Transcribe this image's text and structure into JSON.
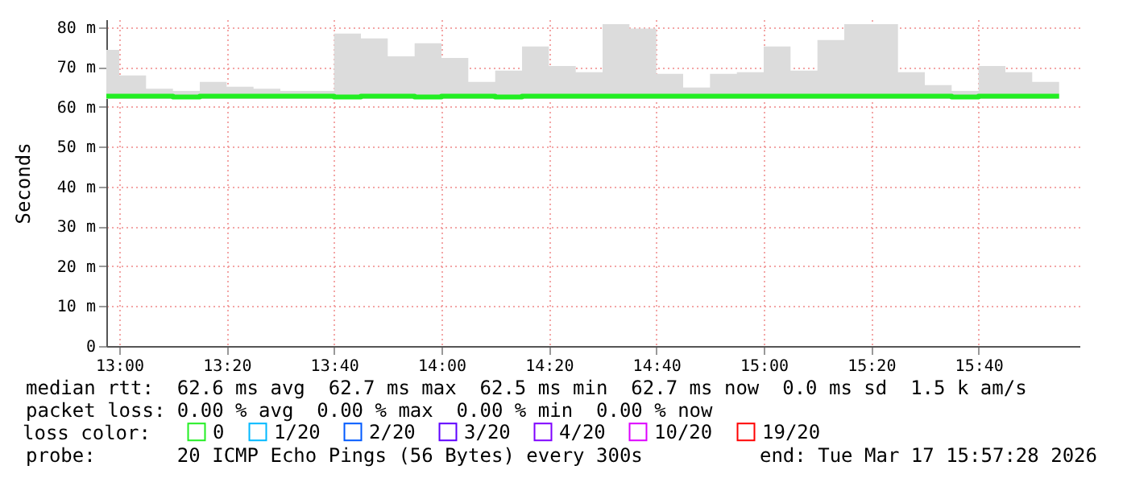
{
  "chart_data": {
    "type": "step",
    "ylabel": "Seconds",
    "legend_title": "loss color:",
    "x": [
      12.96,
      13,
      13.0833,
      13.1667,
      13.25,
      13.3333,
      13.4167,
      13.5,
      13.5833,
      13.6667,
      13.75,
      13.8333,
      13.9167,
      14,
      14.0833,
      14.1667,
      14.25,
      14.3333,
      14.4167,
      14.5,
      14.5833,
      14.6667,
      14.75,
      14.8333,
      14.9167,
      15,
      15.0833,
      15.1667,
      15.25,
      15.3333,
      15.4167,
      15.5,
      15.5833,
      15.6667,
      15.75,
      15.8333,
      15.9167
    ],
    "series": [
      {
        "name": "0",
        "color": "#22ee22",
        "values": [
          62.7,
          62.7,
          62.7,
          62.5,
          62.7,
          62.7,
          62.7,
          62.7,
          62.7,
          62.5,
          62.7,
          62.7,
          62.5,
          62.7,
          62.7,
          62.5,
          62.7,
          62.7,
          62.7,
          62.7,
          62.7,
          62.7,
          62.7,
          62.7,
          62.7,
          62.7,
          62.7,
          62.7,
          62.7,
          62.7,
          62.7,
          62.7,
          62.5,
          62.7,
          62.7,
          62.7,
          62.7
        ],
        "lower": [
          62,
          62,
          62,
          62,
          62,
          62,
          62,
          62,
          62,
          62,
          62,
          62,
          62,
          62,
          62,
          62,
          62,
          62,
          62,
          62,
          62,
          62,
          62,
          62,
          62,
          62,
          62,
          62,
          62,
          62,
          62,
          62,
          62,
          62,
          62,
          62,
          62
        ],
        "upper": [
          74.3,
          67.9,
          64.6,
          64,
          66.3,
          65.1,
          64.6,
          64,
          64,
          78.4,
          77.2,
          72.7,
          76,
          72.3,
          66.3,
          69.1,
          75.2,
          70.3,
          68.7,
          80.8,
          79.7,
          68.3,
          64.9,
          68.3,
          68.7,
          75.2,
          69.1,
          76.8,
          80.8,
          80.8,
          68.7,
          65.5,
          64,
          70.3,
          68.7,
          66.3,
          66.3
        ]
      },
      {
        "name": "1/20",
        "color": "#00b8ff",
        "values": [
          null,
          null,
          null,
          null,
          null,
          null,
          null,
          null,
          null,
          null,
          null,
          null,
          null,
          null,
          null,
          null,
          null,
          null,
          null,
          null,
          null,
          null,
          null,
          null,
          null,
          null,
          null,
          null,
          null,
          null,
          null,
          null,
          null,
          null,
          null,
          null,
          null
        ]
      },
      {
        "name": "2/20",
        "color": "#0059ff",
        "values": [
          null,
          null,
          null,
          null,
          null,
          null,
          null,
          null,
          null,
          null,
          null,
          null,
          null,
          null,
          null,
          null,
          null,
          null,
          null,
          null,
          null,
          null,
          null,
          null,
          null,
          null,
          null,
          null,
          null,
          null,
          null,
          null,
          null,
          null,
          null,
          null,
          null
        ]
      },
      {
        "name": "3/20",
        "color": "#5e00ff",
        "values": [
          null,
          null,
          null,
          null,
          null,
          null,
          null,
          null,
          null,
          null,
          null,
          null,
          null,
          null,
          null,
          null,
          null,
          null,
          null,
          null,
          null,
          null,
          null,
          null,
          null,
          null,
          null,
          null,
          null,
          null,
          null,
          null,
          null,
          null,
          null,
          null,
          null
        ]
      },
      {
        "name": "4/20",
        "color": "#7e00ff",
        "values": [
          null,
          null,
          null,
          null,
          null,
          null,
          null,
          null,
          null,
          null,
          null,
          null,
          null,
          null,
          null,
          null,
          null,
          null,
          null,
          null,
          null,
          null,
          null,
          null,
          null,
          null,
          null,
          null,
          null,
          null,
          null,
          null,
          null,
          null,
          null,
          null,
          null
        ]
      },
      {
        "name": "10/20",
        "color": "#dd00ff",
        "values": [
          null,
          null,
          null,
          null,
          null,
          null,
          null,
          null,
          null,
          null,
          null,
          null,
          null,
          null,
          null,
          null,
          null,
          null,
          null,
          null,
          null,
          null,
          null,
          null,
          null,
          null,
          null,
          null,
          null,
          null,
          null,
          null,
          null,
          null,
          null,
          null,
          null
        ]
      },
      {
        "name": "19/20",
        "color": "#ff0000",
        "values": [
          null,
          null,
          null,
          null,
          null,
          null,
          null,
          null,
          null,
          null,
          null,
          null,
          null,
          null,
          null,
          null,
          null,
          null,
          null,
          null,
          null,
          null,
          null,
          null,
          null,
          null,
          null,
          null,
          null,
          null,
          null,
          null,
          null,
          null,
          null,
          null,
          null
        ]
      }
    ],
    "xlim": [
      12.96,
      15.98
    ],
    "xticks": [
      {
        "value": 13,
        "label": "13:00"
      },
      {
        "value": 13.3333,
        "label": "13:20"
      },
      {
        "value": 13.6667,
        "label": "13:40"
      },
      {
        "value": 14,
        "label": "14:00"
      },
      {
        "value": 14.3333,
        "label": "14:20"
      },
      {
        "value": 14.6667,
        "label": "14:40"
      },
      {
        "value": 15,
        "label": "15:00"
      },
      {
        "value": 15.3333,
        "label": "15:20"
      },
      {
        "value": 15.6667,
        "label": "15:40"
      }
    ],
    "ylim": [
      0,
      82
    ],
    "yticks": [
      0,
      {
        "value": 10,
        "label": "10 m"
      },
      {
        "value": 20,
        "label": "20 m"
      },
      {
        "value": 30,
        "label": "30 m"
      },
      {
        "value": 40,
        "label": "40 m"
      },
      {
        "value": 50,
        "label": "50 m"
      },
      {
        "value": 60,
        "label": "60 m"
      },
      {
        "value": 70,
        "label": "70 m"
      },
      {
        "value": 80,
        "label": "80 m"
      }
    ],
    "grid": true,
    "legend": "bottom",
    "annotations": [
      "median rtt:  62.6 ms avg  62.7 ms max  62.5 ms min  62.7 ms now  0.0 ms sd  1.5 k am/s",
      "packet loss: 0.00 % avg  0.00 % max  0.00 % min  0.00 % now",
      "probe:       20 ICMP Echo Pings (56 Bytes) every 300s",
      "end: Tue Mar 17 15:57:28 2026"
    ]
  }
}
